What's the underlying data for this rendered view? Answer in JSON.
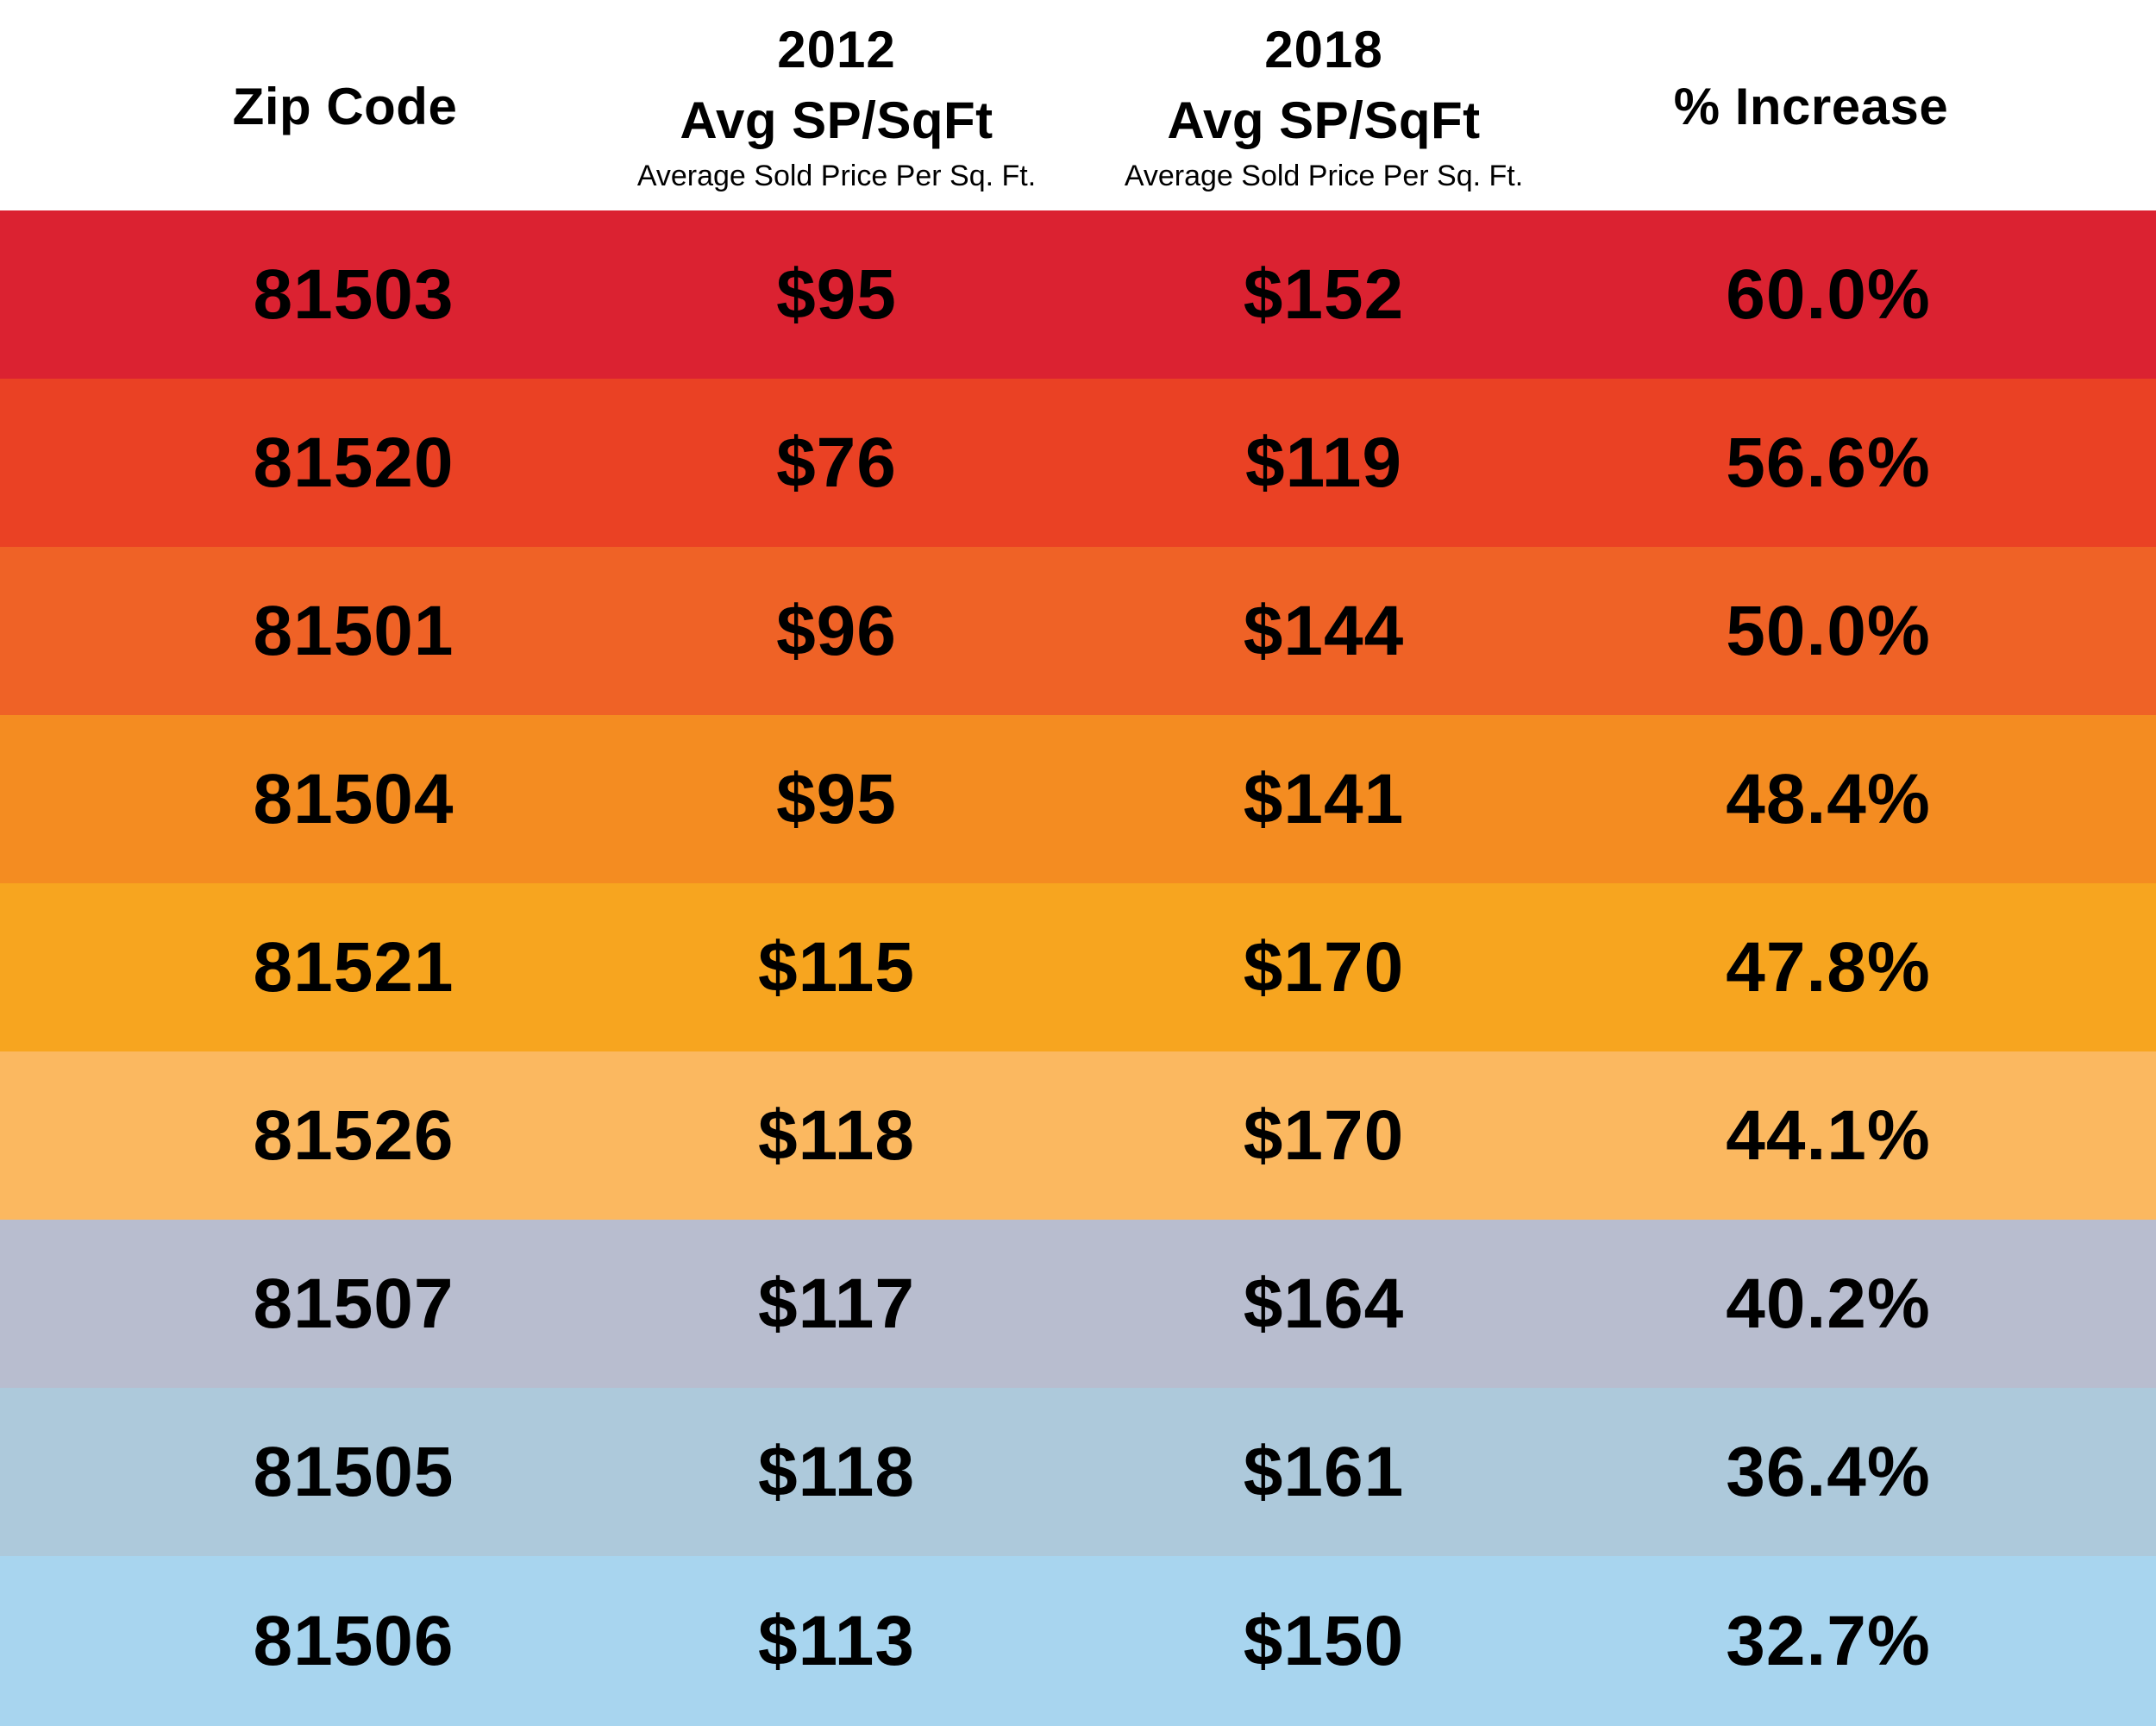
{
  "chart_data": {
    "type": "table",
    "columns": [
      {
        "title": "Zip Code"
      },
      {
        "year": "2012",
        "title": "Avg SP/SqFt",
        "subtitle": "Average Sold Price Per Sq. Ft."
      },
      {
        "year": "2018",
        "title": "Avg SP/SqFt",
        "subtitle": "Average Sold Price Per Sq. Ft."
      },
      {
        "title": "% Increase"
      }
    ],
    "rows": [
      {
        "zip": "81503",
        "sp2012": "$95",
        "sp2018": "$152",
        "increase": "60.0%",
        "color": "#db2231"
      },
      {
        "zip": "81520",
        "sp2012": "$76",
        "sp2018": "$119",
        "increase": "56.6%",
        "color": "#ea4124"
      },
      {
        "zip": "81501",
        "sp2012": "$96",
        "sp2018": "$144",
        "increase": "50.0%",
        "color": "#ef6226"
      },
      {
        "zip": "81504",
        "sp2012": "$95",
        "sp2018": "$141",
        "increase": "48.4%",
        "color": "#f48c21"
      },
      {
        "zip": "81521",
        "sp2012": "$115",
        "sp2018": "$170",
        "increase": "47.8%",
        "color": "#f7a51f"
      },
      {
        "zip": "81526",
        "sp2012": "$118",
        "sp2018": "$170",
        "increase": "44.1%",
        "color": "#fbb860"
      },
      {
        "zip": "81507",
        "sp2012": "$117",
        "sp2018": "$164",
        "increase": "40.2%",
        "color": "#b8bdcf"
      },
      {
        "zip": "81505",
        "sp2012": "$118",
        "sp2018": "$161",
        "increase": "36.4%",
        "color": "#adc9db"
      },
      {
        "zip": "81506",
        "sp2012": "$113",
        "sp2018": "$150",
        "increase": "32.7%",
        "color": "#a8d5ef"
      }
    ]
  }
}
